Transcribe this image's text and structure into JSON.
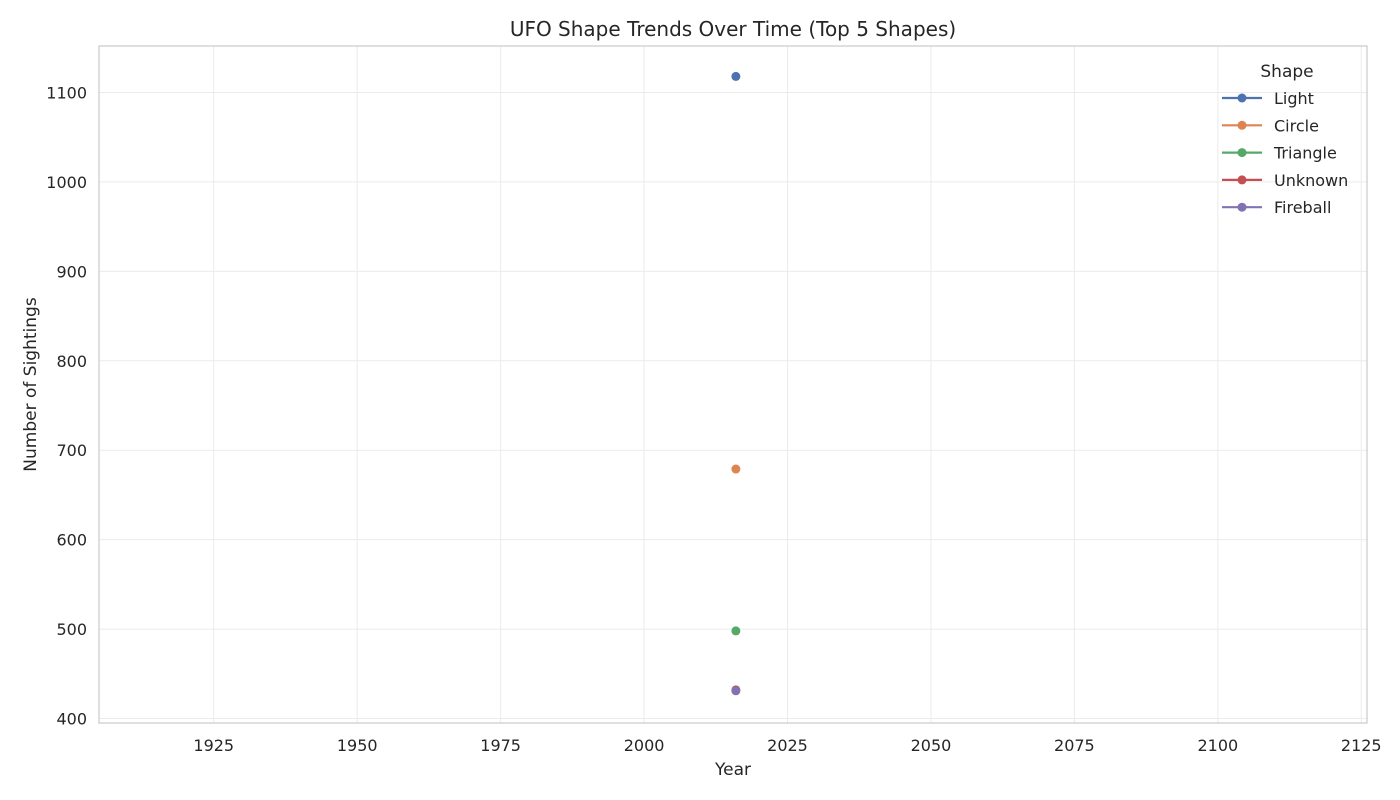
{
  "chart_data": {
    "type": "line",
    "title": "UFO Shape Trends Over Time (Top 5 Shapes)",
    "xlabel": "Year",
    "ylabel": "Number of Sightings",
    "xlim": [
      1905,
      2126
    ],
    "ylim": [
      395,
      1152
    ],
    "x_ticks": [
      1925,
      1950,
      1975,
      2000,
      2025,
      2050,
      2075,
      2100,
      2125
    ],
    "y_ticks": [
      400,
      500,
      600,
      700,
      800,
      900,
      1000,
      1100
    ],
    "grid": true,
    "legend": {
      "title": "Shape",
      "placement": "top-right"
    },
    "series": [
      {
        "name": "Light",
        "color": "#4c72b0",
        "x": [
          2016
        ],
        "y": [
          1118
        ]
      },
      {
        "name": "Circle",
        "color": "#dd8452",
        "x": [
          2016
        ],
        "y": [
          679
        ]
      },
      {
        "name": "Triangle",
        "color": "#55a868",
        "x": [
          2016
        ],
        "y": [
          498
        ]
      },
      {
        "name": "Unknown",
        "color": "#c44e52",
        "x": [
          2016
        ],
        "y": [
          432
        ]
      },
      {
        "name": "Fireball",
        "color": "#8172b3",
        "x": [
          2016
        ],
        "y": [
          431
        ]
      }
    ]
  }
}
